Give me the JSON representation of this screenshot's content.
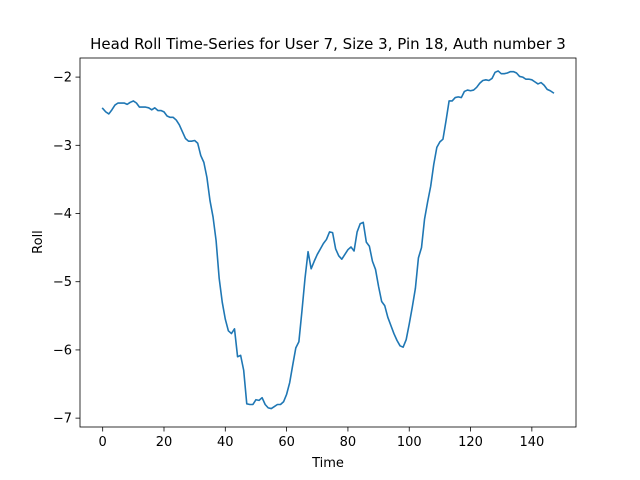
{
  "chart_data": {
    "type": "line",
    "title": "Head Roll Time-Series for User 7, Size 3, Pin 18, Auth number 3",
    "xlabel": "Time",
    "ylabel": "Roll",
    "xlim": [
      -7.4,
      154.4
    ],
    "ylim": [
      -7.13,
      -1.72
    ],
    "xticks": [
      0,
      20,
      40,
      60,
      80,
      100,
      120,
      140
    ],
    "yticks": [
      -7,
      -6,
      -5,
      -4,
      -3,
      -2
    ],
    "xtick_labels": [
      "0",
      "20",
      "40",
      "60",
      "80",
      "100",
      "120",
      "140"
    ],
    "ytick_labels": [
      "−7",
      "−6",
      "−5",
      "−4",
      "−3",
      "−2"
    ],
    "grid": false,
    "series": [
      {
        "color": "#1f77b4",
        "x": [
          0,
          1,
          2,
          3,
          4,
          5,
          6,
          7,
          8,
          9,
          10,
          11,
          12,
          13,
          14,
          15,
          16,
          17,
          18,
          19,
          20,
          21,
          22,
          23,
          24,
          25,
          26,
          27,
          28,
          29,
          30,
          31,
          32,
          33,
          34,
          35,
          36,
          37,
          38,
          39,
          40,
          41,
          42,
          43,
          44,
          45,
          46,
          47,
          48,
          49,
          50,
          51,
          52,
          53,
          54,
          55,
          56,
          57,
          58,
          59,
          60,
          61,
          62,
          63,
          64,
          65,
          66,
          67,
          68,
          69,
          70,
          71,
          72,
          73,
          74,
          75,
          76,
          77,
          78,
          79,
          80,
          81,
          82,
          83,
          84,
          85,
          86,
          87,
          88,
          89,
          90,
          91,
          92,
          93,
          94,
          95,
          96,
          97,
          98,
          99,
          100,
          101,
          102,
          103,
          104,
          105,
          106,
          107,
          108,
          109,
          110,
          111,
          112,
          113,
          114,
          115,
          116,
          117,
          118,
          119,
          120,
          121,
          122,
          123,
          124,
          125,
          126,
          127,
          128,
          129,
          130,
          131,
          132,
          133,
          134,
          135,
          136,
          137,
          138,
          139,
          140,
          141,
          142,
          143,
          144,
          145,
          146,
          147
        ],
        "y": [
          -2.46,
          -2.51,
          -2.54,
          -2.48,
          -2.41,
          -2.38,
          -2.38,
          -2.38,
          -2.4,
          -2.37,
          -2.35,
          -2.38,
          -2.44,
          -2.44,
          -2.44,
          -2.45,
          -2.48,
          -2.45,
          -2.49,
          -2.49,
          -2.51,
          -2.57,
          -2.59,
          -2.59,
          -2.63,
          -2.7,
          -2.8,
          -2.9,
          -2.94,
          -2.94,
          -2.93,
          -2.97,
          -3.15,
          -3.25,
          -3.47,
          -3.81,
          -4.05,
          -4.4,
          -4.95,
          -5.3,
          -5.55,
          -5.72,
          -5.76,
          -5.69,
          -6.1,
          -6.08,
          -6.3,
          -6.79,
          -6.8,
          -6.8,
          -6.73,
          -6.74,
          -6.7,
          -6.8,
          -6.85,
          -6.86,
          -6.83,
          -6.8,
          -6.8,
          -6.76,
          -6.65,
          -6.48,
          -6.22,
          -5.97,
          -5.88,
          -5.43,
          -4.95,
          -4.56,
          -4.81,
          -4.7,
          -4.6,
          -4.52,
          -4.44,
          -4.38,
          -4.27,
          -4.28,
          -4.52,
          -4.62,
          -4.67,
          -4.6,
          -4.53,
          -4.49,
          -4.55,
          -4.27,
          -4.15,
          -4.13,
          -4.42,
          -4.48,
          -4.7,
          -4.82,
          -5.07,
          -5.29,
          -5.35,
          -5.52,
          -5.64,
          -5.76,
          -5.86,
          -5.94,
          -5.96,
          -5.85,
          -5.62,
          -5.37,
          -5.1,
          -4.65,
          -4.5,
          -4.08,
          -3.83,
          -3.6,
          -3.28,
          -3.03,
          -2.95,
          -2.91,
          -2.64,
          -2.35,
          -2.35,
          -2.3,
          -2.29,
          -2.3,
          -2.21,
          -2.19,
          -2.2,
          -2.19,
          -2.15,
          -2.09,
          -2.05,
          -2.04,
          -2.05,
          -2.02,
          -1.93,
          -1.91,
          -1.95,
          -1.95,
          -1.94,
          -1.92,
          -1.92,
          -1.94,
          -1.99,
          -2.0,
          -2.03,
          -2.03,
          -2.04,
          -2.07,
          -2.1,
          -2.08,
          -2.12,
          -2.18,
          -2.2,
          -2.23
        ]
      }
    ]
  }
}
